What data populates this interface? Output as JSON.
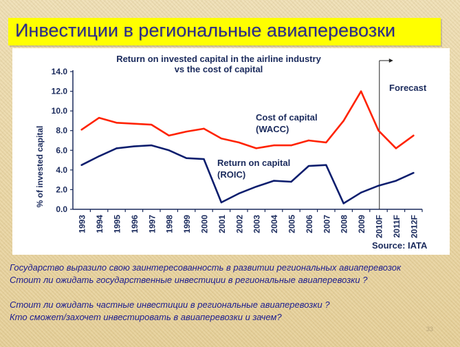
{
  "slide": {
    "title": "Инвестиции в региональные авиаперевозки",
    "page_number": "33",
    "lines": [
      "Государство выразило свою заинтересованность в развитии региональных авиаперевозок",
      "Стоит ли ожидать государственные  инвестиции в региональные авиаперевозки ?",
      "",
      "Стоит ли ожидать частные инвестиции в региональные авиаперевозки ?",
      "Кто сможет/захочет инвестировать в  авиаперевозки и зачем?"
    ],
    "colors": {
      "title_bar": "#ffff00",
      "title_text": "#2a2a8c",
      "body_text": "#1c1c8e",
      "background": "#ead7a6"
    }
  },
  "chart_data": {
    "type": "line",
    "title_line1": "Return on invested capital in the airline industry",
    "title_line2": "vs the cost of capital",
    "ylabel": "% of invested capital",
    "xlabel": "",
    "ylim": [
      0,
      14
    ],
    "yticks": [
      "0.0",
      "2.0",
      "4.0",
      "6.0",
      "8.0",
      "10.0",
      "12.0",
      "14.0"
    ],
    "categories": [
      "1993",
      "1994",
      "1995",
      "1996",
      "1997",
      "1998",
      "1999",
      "2000",
      "2001",
      "2002",
      "2003",
      "2004",
      "2005",
      "2006",
      "2007",
      "2008",
      "2009",
      "2010F",
      "2011F",
      "2012F"
    ],
    "series": [
      {
        "label_line1": "Cost of capital",
        "label_line2": "(WACC)",
        "color": "#ff2200",
        "values": [
          8.1,
          9.3,
          8.8,
          8.7,
          8.6,
          7.5,
          7.9,
          8.2,
          7.2,
          6.8,
          6.2,
          6.5,
          6.5,
          7.0,
          6.8,
          9.0,
          12.0,
          8.0,
          6.2,
          7.5
        ]
      },
      {
        "label_line1": "Return on capital",
        "label_line2": "(ROIC)",
        "color": "#0c1e6e",
        "values": [
          4.5,
          5.4,
          6.2,
          6.4,
          6.5,
          6.0,
          5.2,
          5.1,
          0.7,
          1.6,
          2.3,
          2.9,
          2.8,
          4.4,
          4.5,
          0.6,
          1.7,
          2.4,
          2.9,
          3.7
        ]
      }
    ],
    "forecast_label": "Forecast",
    "forecast_start": "2010F",
    "source": "Source: IATA",
    "grid": false
  }
}
